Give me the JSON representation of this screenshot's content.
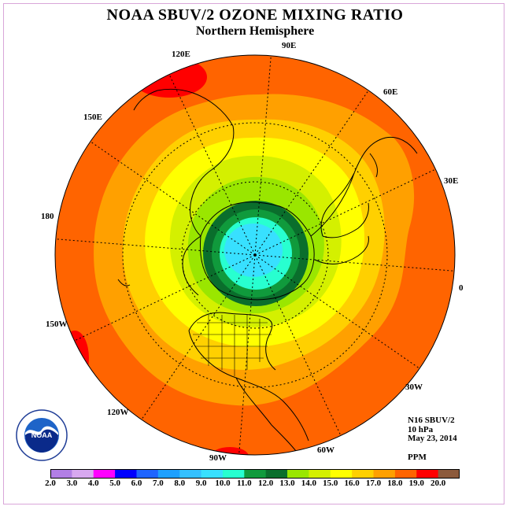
{
  "title": "NOAA SBUV/2 OZONE MIXING RATIO",
  "subtitle": "Northern Hemisphere",
  "longitude_labels": [
    "90E",
    "60E",
    "30E",
    "0",
    "30W",
    "60W",
    "90W",
    "120W",
    "150W",
    "180",
    "150E",
    "120E"
  ],
  "info": {
    "instrument": "N16 SBUV/2",
    "level": "10 hPa",
    "date": "May 23, 2014",
    "units": "PPM"
  },
  "logo_text": "NOAA",
  "colorbar": {
    "ticks": [
      "2.0",
      "3.0",
      "4.0",
      "5.0",
      "6.0",
      "7.0",
      "8.0",
      "9.0",
      "10.0",
      "11.0",
      "12.0",
      "13.0",
      "14.0",
      "15.0",
      "16.0",
      "17.0",
      "18.0",
      "19.0",
      "20.0"
    ],
    "colors": [
      "#b27fe5",
      "#d8a8f0",
      "#ff00ff",
      "#0000ff",
      "#1e64ff",
      "#1ea0ff",
      "#34c0ff",
      "#38e0ff",
      "#28ffd0",
      "#109a3c",
      "#0a6e2c",
      "#9ae600",
      "#d4f000",
      "#ffff00",
      "#ffd000",
      "#ffa000",
      "#ff6400",
      "#ff0000",
      "#8c5a3c"
    ]
  },
  "map_colors": {
    "outer": "#ff6400",
    "band17": "#ffa000",
    "band16": "#ffd000",
    "band15": "#ffff00",
    "band14": "#d4f000",
    "band13": "#9ae600",
    "band12": "#0a6e2c",
    "band11": "#109a3c",
    "core10": "#28ffd0",
    "core9": "#38e0ff",
    "max": "#ff0000"
  }
}
